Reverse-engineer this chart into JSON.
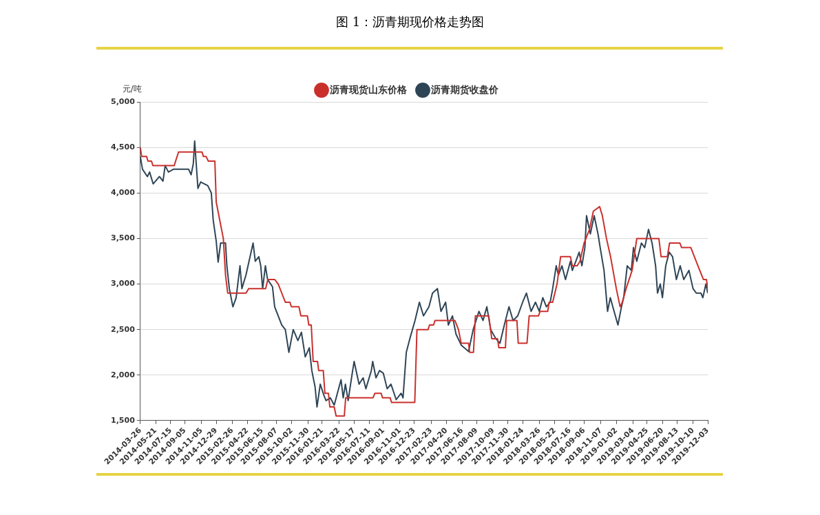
{
  "chart_data": {
    "type": "line",
    "title": "图 1：沥青期现价格走势图",
    "ylabel": "元/吨",
    "legend": "top",
    "grid": "y",
    "marker": "none",
    "line_style": "solid",
    "ylim": [
      1500,
      5000
    ],
    "yticks": [
      {
        "value": 1500,
        "label": "1,500"
      },
      {
        "value": 2000,
        "label": "2,000"
      },
      {
        "value": 2500,
        "label": "2,500"
      },
      {
        "value": 3000,
        "label": "3,000"
      },
      {
        "value": 3500,
        "label": "3,500"
      },
      {
        "value": 4000,
        "label": "4,000"
      },
      {
        "value": 4500,
        "label": "4,500"
      },
      {
        "value": 5000,
        "label": "5,000"
      }
    ],
    "xlim": [
      "2014-03-26",
      "2019-12-03"
    ],
    "xticks": [
      "2014-03-26",
      "2014-05-21",
      "2014-07-15",
      "2014-09-05",
      "2014-11-05",
      "2014-12-29",
      "2015-02-26",
      "2015-04-22",
      "2015-06-15",
      "2015-08-07",
      "2015-10-02",
      "2015-11-30",
      "2016-01-21",
      "2016-03-22",
      "2016-05-17",
      "2016-07-11",
      "2016-09-01",
      "2016-11-01",
      "2016-12-23",
      "2017-02-23",
      "2017-04-20",
      "2017-06-16",
      "2017-08-09",
      "2017-10-09",
      "2017-11-30",
      "2018-01-24",
      "2018-03-26",
      "2018-05-22",
      "2018-07-16",
      "2018-09-06",
      "2018-11-07",
      "2019-01-02",
      "2019-03-04",
      "2019-04-25",
      "2019-06-20",
      "2019-08-13",
      "2019-10-10",
      "2019-12-03"
    ],
    "series": [
      {
        "name": "沥青现货山东价格",
        "color": "#c9302c",
        "x": [
          "2014-03-26",
          "2014-03-31",
          "2014-04-18",
          "2014-04-23",
          "2014-05-06",
          "2014-05-11",
          "2014-07-28",
          "2014-08-13",
          "2014-11-07",
          "2014-11-12",
          "2014-11-22",
          "2014-11-30",
          "2014-12-24",
          "2014-12-29",
          "2015-01-11",
          "2015-01-24",
          "2015-02-01",
          "2015-02-09",
          "2015-04-17",
          "2015-04-27",
          "2015-06-28",
          "2015-07-06",
          "2015-07-31",
          "2015-08-13",
          "2015-08-26",
          "2015-09-08",
          "2015-09-25",
          "2015-09-30",
          "2015-10-28",
          "2015-11-04",
          "2015-11-28",
          "2015-12-03",
          "2015-12-12",
          "2015-12-19",
          "2016-01-04",
          "2016-01-08",
          "2016-01-25",
          "2016-01-31",
          "2016-02-13",
          "2016-02-18",
          "2016-03-05",
          "2016-03-12",
          "2016-04-11",
          "2016-04-16",
          "2016-07-25",
          "2016-08-01",
          "2016-08-24",
          "2016-08-29",
          "2016-09-26",
          "2016-10-01",
          "2016-12-25",
          "2017-01-02",
          "2017-02-12",
          "2017-02-17",
          "2017-03-04",
          "2017-03-09",
          "2017-05-21",
          "2017-06-03",
          "2017-06-13",
          "2017-07-10",
          "2017-07-14",
          "2017-07-28",
          "2017-08-04",
          "2017-09-22",
          "2017-10-03",
          "2017-10-24",
          "2017-10-29",
          "2017-11-22",
          "2017-11-27",
          "2018-01-03",
          "2018-01-08",
          "2018-02-09",
          "2018-02-17",
          "2018-03-23",
          "2018-03-29",
          "2018-04-26",
          "2018-05-01",
          "2018-05-14",
          "2018-05-30",
          "2018-06-12",
          "2018-07-18",
          "2018-07-25",
          "2018-08-12",
          "2018-08-22",
          "2018-09-06",
          "2018-09-26",
          "2018-10-10",
          "2018-11-02",
          "2018-11-12",
          "2018-11-27",
          "2018-12-12",
          "2019-01-02",
          "2019-01-16",
          "2019-01-24",
          "2019-02-07",
          "2019-03-01",
          "2019-03-18",
          "2019-06-07",
          "2019-06-15",
          "2019-07-08",
          "2019-07-16",
          "2019-08-23",
          "2019-08-29",
          "2019-10-02",
          "2019-10-15",
          "2019-10-28",
          "2019-11-17",
          "2019-11-28",
          "2019-12-03"
        ],
        "values": [
          4500,
          4400,
          4400,
          4350,
          4350,
          4300,
          4300,
          4450,
          4450,
          4400,
          4400,
          4350,
          4350,
          3900,
          3700,
          3500,
          3100,
          2900,
          2900,
          2950,
          2950,
          3050,
          3050,
          3000,
          2900,
          2800,
          2800,
          2750,
          2750,
          2650,
          2650,
          2550,
          2550,
          2150,
          2150,
          2050,
          2050,
          1800,
          1800,
          1650,
          1650,
          1550,
          1550,
          1750,
          1750,
          1800,
          1800,
          1750,
          1750,
          1700,
          1700,
          2500,
          2500,
          2550,
          2550,
          2600,
          2600,
          2500,
          2350,
          2350,
          2250,
          2250,
          2650,
          2650,
          2400,
          2400,
          2300,
          2300,
          2600,
          2600,
          2350,
          2350,
          2650,
          2650,
          2700,
          2700,
          2800,
          2800,
          3000,
          3300,
          3300,
          3200,
          3200,
          3250,
          3450,
          3600,
          3800,
          3850,
          3750,
          3500,
          3300,
          2950,
          2750,
          2800,
          2950,
          3150,
          3500,
          3500,
          3300,
          3300,
          3450,
          3450,
          3400,
          3400,
          3300,
          3200,
          3050,
          3050,
          2950
        ]
      },
      {
        "name": "沥青期货收盘价",
        "color": "#2e4556",
        "x": [
          "2014-03-26",
          "2014-04-03",
          "2014-04-21",
          "2014-04-29",
          "2014-05-12",
          "2014-06-04",
          "2014-06-17",
          "2014-06-25",
          "2014-07-07",
          "2014-07-25",
          "2014-09-19",
          "2014-09-28",
          "2014-10-06",
          "2014-10-11",
          "2014-10-23",
          "2014-11-02",
          "2014-11-28",
          "2014-12-11",
          "2014-12-18",
          "2014-12-29",
          "2015-01-05",
          "2015-01-14",
          "2015-02-01",
          "2015-02-06",
          "2015-02-15",
          "2015-02-28",
          "2015-03-12",
          "2015-03-26",
          "2015-04-02",
          "2015-04-17",
          "2015-05-13",
          "2015-05-21",
          "2015-06-03",
          "2015-06-10",
          "2015-06-17",
          "2015-06-27",
          "2015-07-05",
          "2015-07-23",
          "2015-07-31",
          "2015-08-26",
          "2015-09-08",
          "2015-09-21",
          "2015-10-07",
          "2015-10-24",
          "2015-11-06",
          "2015-11-20",
          "2015-12-05",
          "2015-12-14",
          "2015-12-26",
          "2016-01-02",
          "2016-01-14",
          "2016-01-27",
          "2016-02-04",
          "2016-02-20",
          "2016-03-05",
          "2016-03-30",
          "2016-04-07",
          "2016-04-15",
          "2016-04-25",
          "2016-05-09",
          "2016-05-17",
          "2016-06-04",
          "2016-06-19",
          "2016-06-29",
          "2016-07-19",
          "2016-07-24",
          "2016-08-05",
          "2016-08-18",
          "2016-09-01",
          "2016-09-15",
          "2016-09-29",
          "2016-10-18",
          "2016-11-05",
          "2016-11-12",
          "2016-11-24",
          "2016-12-07",
          "2016-12-26",
          "2017-01-11",
          "2017-01-26",
          "2017-02-15",
          "2017-02-28",
          "2017-03-18",
          "2017-03-31",
          "2017-04-17",
          "2017-04-27",
          "2017-05-12",
          "2017-05-25",
          "2017-06-13",
          "2017-07-10",
          "2017-07-27",
          "2017-08-17",
          "2017-09-01",
          "2017-09-15",
          "2017-09-29",
          "2017-10-18",
          "2017-11-02",
          "2017-11-18",
          "2017-12-05",
          "2017-12-20",
          "2018-01-06",
          "2018-01-24",
          "2018-02-07",
          "2018-02-24",
          "2018-03-12",
          "2018-03-26",
          "2018-04-08",
          "2018-04-21",
          "2018-05-05",
          "2018-05-14",
          "2018-05-27",
          "2018-06-04",
          "2018-06-17",
          "2018-06-30",
          "2018-07-18",
          "2018-07-25",
          "2018-08-07",
          "2018-08-19",
          "2018-08-29",
          "2018-09-09",
          "2018-09-15",
          "2018-09-29",
          "2018-10-13",
          "2018-10-27",
          "2018-11-04",
          "2018-11-18",
          "2018-12-01",
          "2018-12-11",
          "2018-12-25",
          "2019-01-08",
          "2019-01-21",
          "2019-01-29",
          "2019-02-11",
          "2019-02-26",
          "2019-03-06",
          "2019-03-18",
          "2019-04-04",
          "2019-04-16",
          "2019-04-30",
          "2019-05-13",
          "2019-05-26",
          "2019-06-02",
          "2019-06-12",
          "2019-06-20",
          "2019-07-02",
          "2019-07-15",
          "2019-07-27",
          "2019-08-10",
          "2019-08-24",
          "2019-09-06",
          "2019-09-25",
          "2019-10-10",
          "2019-10-22",
          "2019-11-08",
          "2019-11-15",
          "2019-11-26",
          "2019-12-03"
        ],
        "values": [
          4400,
          4260,
          4180,
          4230,
          4100,
          4180,
          4130,
          4300,
          4230,
          4260,
          4260,
          4200,
          4320,
          4570,
          4050,
          4120,
          4080,
          4000,
          3700,
          3470,
          3240,
          3450,
          3450,
          3200,
          2950,
          2750,
          2850,
          3200,
          2950,
          3100,
          3450,
          3250,
          3300,
          3200,
          2950,
          3200,
          3050,
          2970,
          2750,
          2550,
          2500,
          2250,
          2500,
          2380,
          2470,
          2200,
          2300,
          2050,
          1870,
          1650,
          1900,
          1780,
          1720,
          1750,
          1670,
          1950,
          1750,
          1900,
          1720,
          2000,
          2150,
          1900,
          1970,
          1850,
          2050,
          2150,
          1970,
          2050,
          2020,
          1850,
          1900,
          1730,
          1800,
          1750,
          2250,
          2400,
          2600,
          2800,
          2650,
          2750,
          2900,
          2950,
          2700,
          2800,
          2550,
          2650,
          2450,
          2330,
          2260,
          2500,
          2700,
          2600,
          2750,
          2500,
          2400,
          2350,
          2550,
          2750,
          2600,
          2650,
          2800,
          2900,
          2700,
          2800,
          2700,
          2850,
          2750,
          2800,
          2950,
          3200,
          3100,
          3200,
          3050,
          3250,
          3150,
          3250,
          3350,
          3200,
          3400,
          3750,
          3550,
          3750,
          3550,
          3400,
          3150,
          2700,
          2850,
          2700,
          2550,
          2750,
          2850,
          3200,
          3150,
          3400,
          3250,
          3450,
          3400,
          3600,
          3450,
          3200,
          2900,
          3000,
          2850,
          3200,
          3350,
          3300,
          3050,
          3200,
          3050,
          3150,
          2950,
          2900,
          2900,
          2850,
          3000,
          2900
        ]
      }
    ]
  }
}
